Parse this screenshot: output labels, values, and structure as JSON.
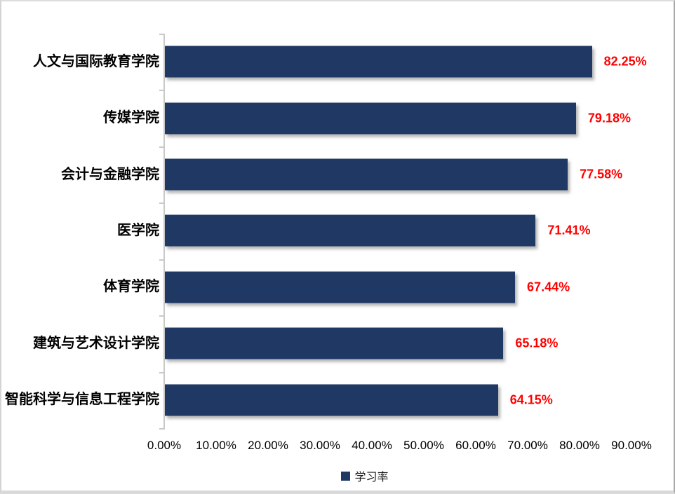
{
  "chart_data": {
    "type": "bar",
    "orientation": "horizontal",
    "categories": [
      "人文与国际教育学院",
      "传媒学院",
      "会计与金融学院",
      "医学院",
      "体育学院",
      "建筑与艺术设计学院",
      "智能科学与信息工程学院"
    ],
    "values": [
      82.25,
      79.18,
      77.58,
      71.41,
      67.44,
      65.18,
      64.15
    ],
    "data_labels": [
      "82.25%",
      "79.18%",
      "77.58%",
      "71.41%",
      "67.44%",
      "65.18%",
      "64.15%"
    ],
    "x_tick_labels": [
      "0.00%",
      "10.00%",
      "20.00%",
      "30.00%",
      "40.00%",
      "50.00%",
      "60.00%",
      "70.00%",
      "80.00%",
      "90.00%"
    ],
    "xlim": [
      0,
      90
    ],
    "x_tick_step": 10,
    "grid": "off",
    "legend_position": "bottom",
    "legend": {
      "label": "学习率"
    },
    "colors": {
      "bar": "#1F3864",
      "data_label": "#FF0000",
      "axis": "#C9C9C9",
      "tick_label": "#000000"
    }
  }
}
